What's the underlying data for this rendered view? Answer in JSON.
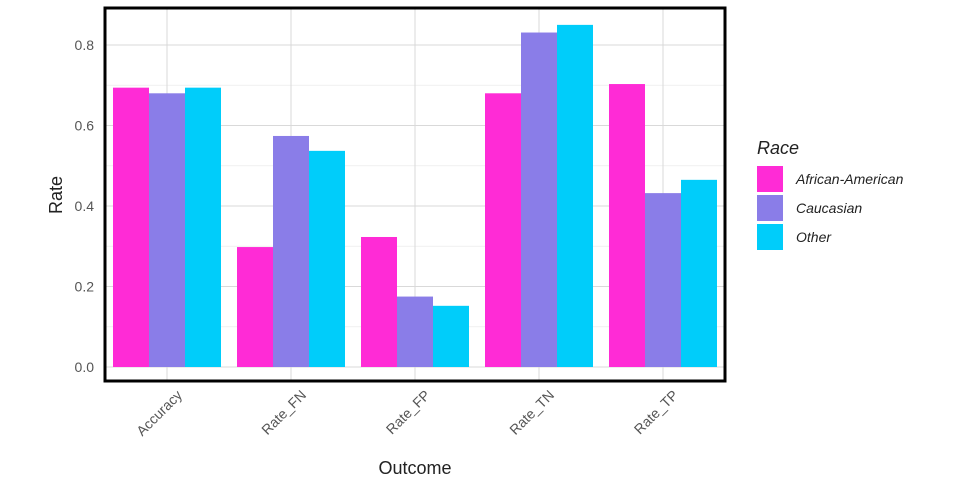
{
  "chart_data": {
    "type": "bar",
    "xlabel": "Outcome",
    "ylabel": "Rate",
    "categories": [
      "Accuracy",
      "Rate_FN",
      "Rate_FP",
      "Rate_TN",
      "Rate_TP"
    ],
    "series": [
      {
        "name": "African-American",
        "color": "#ff2bd6",
        "values": [
          0.694,
          0.298,
          0.323,
          0.68,
          0.703
        ]
      },
      {
        "name": "Caucasian",
        "color": "#8a7de8",
        "values": [
          0.68,
          0.574,
          0.175,
          0.831,
          0.432
        ]
      },
      {
        "name": "Other",
        "color": "#00cdfa",
        "values": [
          0.694,
          0.537,
          0.152,
          0.85,
          0.465
        ]
      }
    ],
    "ylim": [
      0,
      0.84
    ],
    "yticks": [
      0.0,
      0.2,
      0.4,
      0.6,
      0.8
    ],
    "yticklabels": [
      "0.0",
      "0.2",
      "0.4",
      "0.6",
      "0.8"
    ],
    "grid": true,
    "legend": {
      "title": "Race",
      "placement": "right"
    }
  }
}
